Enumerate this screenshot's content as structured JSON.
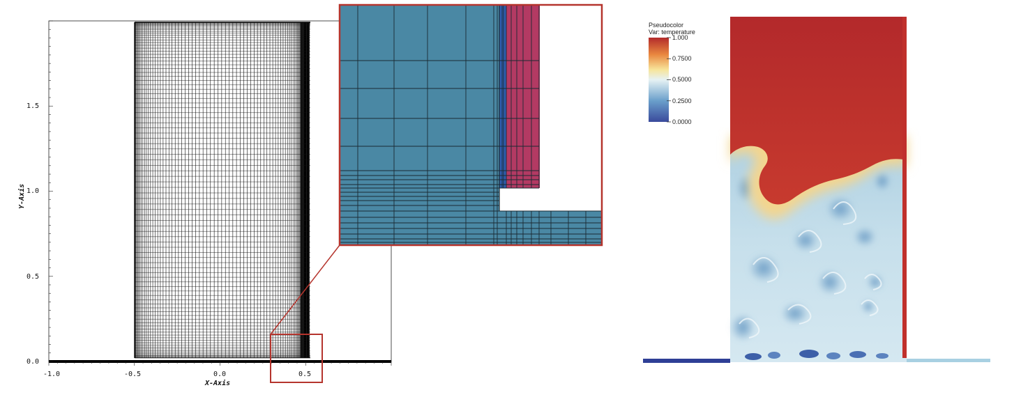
{
  "mesh_plot": {
    "x_axis_label": "X-Axis",
    "y_axis_label": "Y-Axis",
    "x_ticks": [
      "-1.0",
      "-0.5",
      "0.0",
      "0.5"
    ],
    "y_ticks": [
      "0.0",
      "0.5",
      "1.0",
      "1.5"
    ],
    "x_range": [
      -1.0,
      1.0
    ],
    "y_range": [
      0.0,
      2.0
    ]
  },
  "zoom_inset": {
    "highlight_color": "#b5342d",
    "block_colors": {
      "solid": "#4a88a4",
      "fluid": "#b33a63",
      "interface": "#2f5fb0"
    }
  },
  "pseudocolor": {
    "legend_title": "Pseudocolor",
    "legend_var": "Var: temperature",
    "legend_ticks": [
      "1.000",
      "0.7500",
      "0.5000",
      "0.2500",
      "0.0000"
    ],
    "legend_tick_values": [
      1.0,
      0.75,
      0.5,
      0.25,
      0.0
    ],
    "colormap": [
      "#3a4a9c",
      "#6a9fcb",
      "#d9ecf2",
      "#f7e49a",
      "#e9873f",
      "#b32b2b"
    ]
  }
}
